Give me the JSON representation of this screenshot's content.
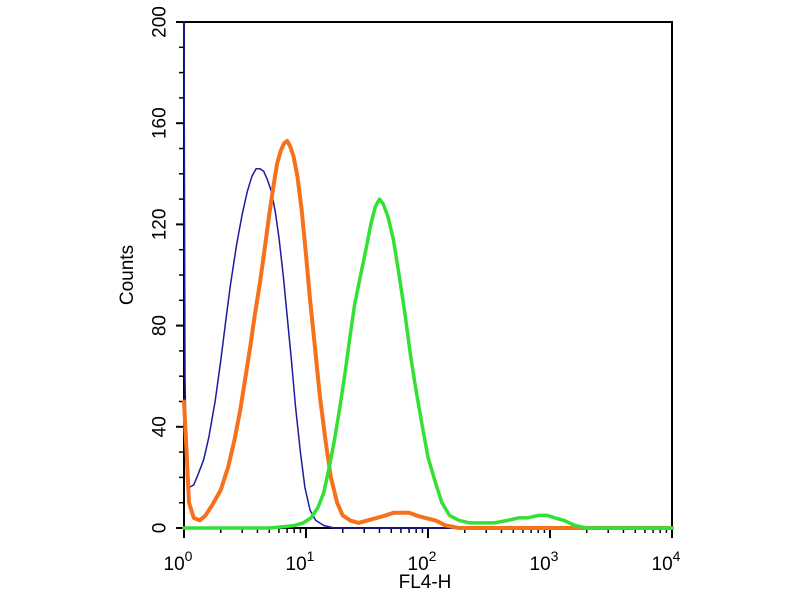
{
  "chart_data": {
    "type": "line",
    "title": "",
    "xlabel": "FL4-H",
    "ylabel": "Counts",
    "xscale": "log",
    "xlim": [
      1,
      10000
    ],
    "ylim": [
      0,
      200
    ],
    "y_ticks": [
      0,
      40,
      80,
      120,
      160,
      200
    ],
    "y_tick_labels": [
      "0",
      "40",
      "80",
      "120",
      "160",
      "200"
    ],
    "x_ticks": [
      1,
      10,
      100,
      1000,
      10000
    ],
    "x_tick_labels": [
      {
        "base": "10",
        "exp": "0"
      },
      {
        "base": "10",
        "exp": "1"
      },
      {
        "base": "10",
        "exp": "2"
      },
      {
        "base": "10",
        "exp": "3"
      },
      {
        "base": "10",
        "exp": "4"
      }
    ],
    "grid": false,
    "series": [
      {
        "color": "#1c1ca0",
        "points": [
          [
            1.0,
            200
          ],
          [
            1.02,
            60
          ],
          [
            1.05,
            20
          ],
          [
            1.1,
            16
          ],
          [
            1.2,
            17
          ],
          [
            1.3,
            21
          ],
          [
            1.45,
            27
          ],
          [
            1.6,
            36
          ],
          [
            1.8,
            50
          ],
          [
            2.0,
            66
          ],
          [
            2.2,
            82
          ],
          [
            2.4,
            96
          ],
          [
            2.7,
            112
          ],
          [
            3.0,
            124
          ],
          [
            3.3,
            133
          ],
          [
            3.6,
            139
          ],
          [
            3.9,
            142
          ],
          [
            4.2,
            142
          ],
          [
            4.5,
            141
          ],
          [
            4.8,
            138
          ],
          [
            5.2,
            133
          ],
          [
            5.6,
            125
          ],
          [
            6.0,
            115
          ],
          [
            6.5,
            100
          ],
          [
            7.0,
            84
          ],
          [
            7.6,
            66
          ],
          [
            8.2,
            48
          ],
          [
            9.0,
            30
          ],
          [
            9.8,
            16
          ],
          [
            10.8,
            7
          ],
          [
            12,
            3
          ],
          [
            14,
            1
          ],
          [
            17,
            0
          ],
          [
            25,
            0
          ],
          [
            50,
            0
          ],
          [
            100,
            0
          ],
          [
            1000,
            0
          ],
          [
            10000,
            0
          ]
        ]
      },
      {
        "color": "#f5711c",
        "points": [
          [
            1.0,
            50
          ],
          [
            1.05,
            30
          ],
          [
            1.1,
            10
          ],
          [
            1.2,
            4
          ],
          [
            1.35,
            3
          ],
          [
            1.5,
            5
          ],
          [
            1.7,
            9
          ],
          [
            2.0,
            15
          ],
          [
            2.3,
            24
          ],
          [
            2.6,
            35
          ],
          [
            2.9,
            47
          ],
          [
            3.2,
            60
          ],
          [
            3.5,
            72
          ],
          [
            3.8,
            84
          ],
          [
            4.2,
            97
          ],
          [
            4.6,
            111
          ],
          [
            5.0,
            124
          ],
          [
            5.4,
            135
          ],
          [
            5.8,
            144
          ],
          [
            6.2,
            149
          ],
          [
            6.6,
            152
          ],
          [
            7.0,
            153
          ],
          [
            7.4,
            151
          ],
          [
            7.9,
            147
          ],
          [
            8.5,
            139
          ],
          [
            9.2,
            126
          ],
          [
            10.0,
            108
          ],
          [
            10.8,
            90
          ],
          [
            11.8,
            72
          ],
          [
            13.0,
            52
          ],
          [
            14.5,
            34
          ],
          [
            16,
            20
          ],
          [
            18,
            10
          ],
          [
            20,
            5
          ],
          [
            23,
            3
          ],
          [
            27,
            2
          ],
          [
            32,
            3
          ],
          [
            38,
            4
          ],
          [
            45,
            5
          ],
          [
            52,
            6
          ],
          [
            60,
            6
          ],
          [
            70,
            6
          ],
          [
            80,
            5
          ],
          [
            95,
            4
          ],
          [
            115,
            3
          ],
          [
            140,
            1
          ],
          [
            180,
            0
          ],
          [
            300,
            0
          ],
          [
            1000,
            0
          ],
          [
            10000,
            0
          ]
        ]
      },
      {
        "color": "#33e033",
        "points": [
          [
            1.0,
            0
          ],
          [
            3,
            0
          ],
          [
            5,
            0
          ],
          [
            6.5,
            0.5
          ],
          [
            8,
            1
          ],
          [
            9.5,
            2
          ],
          [
            11,
            4
          ],
          [
            12.5,
            8
          ],
          [
            14,
            14
          ],
          [
            15.5,
            24
          ],
          [
            17,
            34
          ],
          [
            19,
            48
          ],
          [
            21,
            62
          ],
          [
            23,
            76
          ],
          [
            25,
            88
          ],
          [
            28,
            100
          ],
          [
            31,
            110
          ],
          [
            34,
            120
          ],
          [
            37,
            127
          ],
          [
            40,
            130
          ],
          [
            43,
            128
          ],
          [
            47,
            123
          ],
          [
            52,
            114
          ],
          [
            58,
            100
          ],
          [
            65,
            84
          ],
          [
            72,
            68
          ],
          [
            80,
            54
          ],
          [
            90,
            40
          ],
          [
            100,
            28
          ],
          [
            115,
            18
          ],
          [
            130,
            10
          ],
          [
            150,
            5
          ],
          [
            180,
            3
          ],
          [
            220,
            2
          ],
          [
            280,
            2
          ],
          [
            350,
            2
          ],
          [
            450,
            3
          ],
          [
            550,
            4
          ],
          [
            650,
            4
          ],
          [
            800,
            5
          ],
          [
            950,
            5
          ],
          [
            1100,
            4
          ],
          [
            1300,
            3
          ],
          [
            1600,
            1
          ],
          [
            2000,
            0
          ],
          [
            3000,
            0
          ],
          [
            10000,
            0
          ]
        ]
      }
    ]
  }
}
